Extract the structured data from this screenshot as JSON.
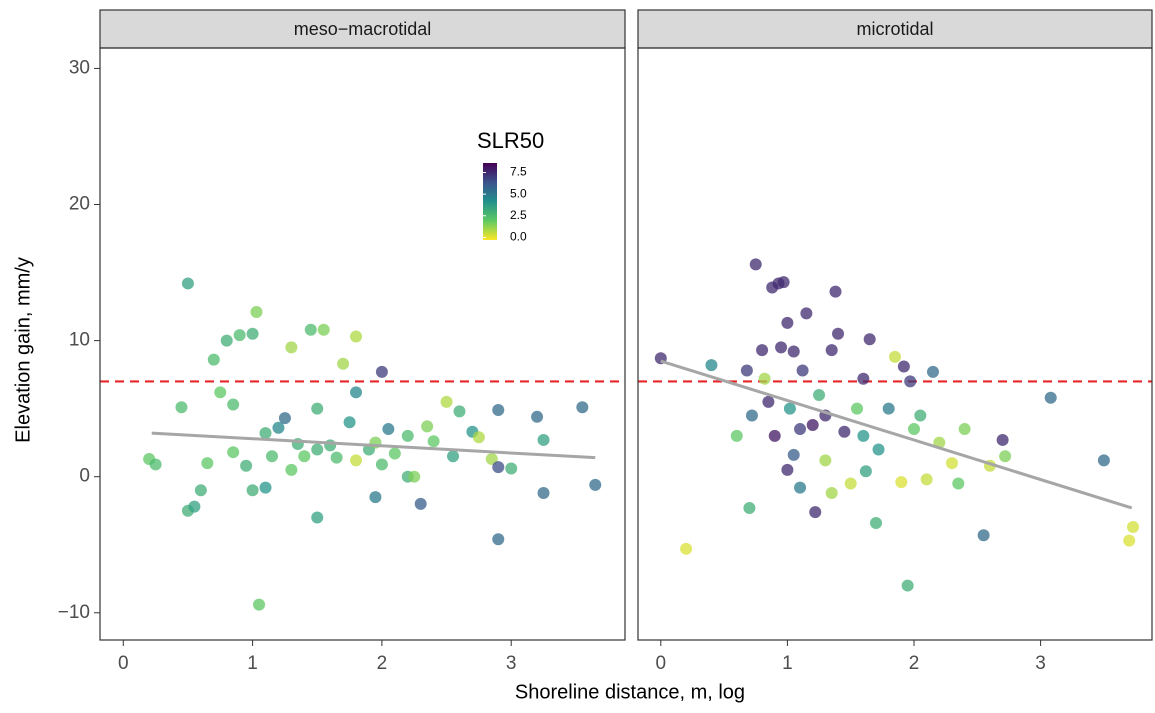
{
  "chart_data": {
    "type": "scatter",
    "x_label": "Shoreline distance, m, log",
    "y_label": "Elevation gain, mm/y",
    "xlim": [
      -0.18,
      3.88
    ],
    "xticks": [
      0,
      1,
      2,
      3
    ],
    "ylim": [
      -12,
      31.5
    ],
    "yticks": [
      {
        "value": -10,
        "label": "−10"
      },
      0,
      10,
      20,
      30
    ],
    "hline": 7,
    "hline_color": "#e8262a",
    "trend_color": "#a6a6a6",
    "legend": {
      "title": "SLR50",
      "position": "inside-top-right",
      "colorlim": [
        -0.3,
        8.6
      ],
      "ticks": [
        {
          "value": 0,
          "label": "0.0"
        },
        {
          "value": 2.5,
          "label": "2.5"
        },
        {
          "value": 5,
          "label": "5.0"
        },
        {
          "value": 7.5,
          "label": "7.5"
        }
      ],
      "colormap": [
        "#fde725",
        "#5ec962",
        "#21918c",
        "#3b528b",
        "#440154"
      ]
    },
    "panels": [
      {
        "title": "meso−macrotidal",
        "x": [
          0.2,
          0.25,
          0.45,
          0.5,
          0.5,
          0.55,
          0.6,
          0.65,
          0.7,
          0.75,
          0.8,
          0.85,
          0.9,
          0.95,
          1.0,
          1.0,
          1.03,
          1.05,
          1.1,
          1.1,
          1.15,
          1.2,
          1.25,
          1.3,
          1.35,
          1.4,
          1.45,
          1.5,
          1.5,
          1.55,
          1.6,
          1.65,
          1.7,
          1.75,
          1.8,
          1.8,
          1.9,
          1.95,
          2.0,
          2.0,
          2.05,
          2.1,
          2.2,
          2.25,
          2.3,
          2.35,
          2.4,
          2.5,
          2.55,
          2.6,
          2.7,
          2.75,
          2.85,
          2.9,
          2.9,
          2.9,
          3.0,
          3.2,
          3.25,
          3.25,
          3.55,
          3.65,
          1.3,
          1.5,
          2.2,
          1.8,
          0.85,
          1.95
        ],
        "y": [
          1.3,
          0.9,
          5.1,
          14.2,
          -2.5,
          -2.2,
          -1,
          1,
          8.6,
          6.2,
          10,
          5.3,
          10.4,
          0.8,
          -1,
          10.5,
          12.1,
          -9.4,
          3.2,
          -0.8,
          1.5,
          3.6,
          4.3,
          9.5,
          2.4,
          1.5,
          10.8,
          -3,
          5,
          10.8,
          2.3,
          1.4,
          8.3,
          4,
          10.3,
          6.2,
          2,
          -1.5,
          7.7,
          0.9,
          3.5,
          1.7,
          0,
          0,
          -2,
          3.7,
          2.6,
          5.5,
          1.5,
          4.8,
          3.3,
          2.9,
          1.3,
          0.7,
          4.9,
          -4.6,
          0.6,
          4.4,
          -1.2,
          2.7,
          5.1,
          -0.6,
          0.5,
          2,
          3,
          1.2,
          1.8,
          2.5
        ],
        "color_values": [
          2,
          2.5,
          2.5,
          3.5,
          3,
          3.5,
          3,
          2,
          2.5,
          2,
          3,
          2.5,
          2.5,
          3,
          3,
          3,
          1.5,
          2,
          3,
          4,
          2.5,
          4.5,
          5.5,
          1,
          3,
          2,
          2.5,
          3.5,
          3,
          1.5,
          3,
          2.5,
          1,
          4,
          0.8,
          4.5,
          3,
          5,
          7,
          2.5,
          5,
          2,
          3,
          1.5,
          6,
          1.5,
          2,
          0.8,
          3.5,
          3,
          4,
          0.8,
          1,
          6.5,
          5.5,
          5.5,
          3,
          5.5,
          5.5,
          3.5,
          5.5,
          5.5,
          2,
          3,
          2.5,
          0.5,
          2,
          1.5
        ],
        "trend": {
          "x": [
            0.22,
            3.65
          ],
          "y": [
            3.2,
            1.4
          ]
        }
      },
      {
        "title": "microtidal",
        "x": [
          0,
          0.2,
          0.4,
          0.6,
          0.68,
          0.7,
          0.72,
          0.75,
          0.8,
          0.82,
          0.85,
          0.88,
          0.9,
          0.93,
          0.97,
          1.0,
          1.0,
          1.02,
          1.05,
          1.05,
          1.1,
          1.12,
          1.15,
          1.2,
          1.22,
          1.25,
          1.3,
          1.35,
          1.38,
          1.4,
          1.45,
          1.5,
          1.55,
          1.6,
          1.62,
          1.65,
          1.7,
          1.72,
          1.8,
          1.85,
          1.9,
          1.92,
          1.95,
          1.97,
          2.0,
          2.05,
          2.1,
          2.15,
          2.2,
          2.3,
          2.35,
          2.4,
          2.55,
          2.6,
          2.7,
          2.72,
          3.08,
          3.5,
          3.73,
          3.7,
          1.3,
          1.1,
          0.95,
          1.6,
          1.35
        ],
        "y": [
          8.7,
          -5.3,
          8.2,
          3,
          7.8,
          -2.3,
          4.5,
          15.6,
          9.3,
          7.2,
          5.5,
          13.9,
          3,
          14.2,
          14.3,
          11.3,
          0.5,
          5,
          1.6,
          9.2,
          -0.8,
          7.8,
          12,
          3.8,
          -2.6,
          6,
          1.2,
          9.3,
          13.6,
          10.5,
          3.3,
          -0.5,
          5,
          7.2,
          0.4,
          10.1,
          -3.4,
          2,
          5,
          8.8,
          -0.4,
          8.1,
          -8,
          7,
          3.5,
          4.5,
          -0.2,
          7.7,
          2.5,
          1,
          -0.5,
          3.5,
          -4.3,
          0.8,
          2.7,
          1.5,
          5.8,
          1.2,
          -3.7,
          -4.7,
          4.5,
          3.5,
          9.5,
          3,
          -1.2
        ],
        "color_values": [
          7.5,
          0.2,
          4.5,
          2,
          7,
          3,
          5.5,
          7.5,
          7.5,
          1,
          7.5,
          7.5,
          8,
          7.5,
          7.5,
          7.5,
          7.5,
          4,
          6,
          7.5,
          5,
          7,
          7.5,
          8,
          7.5,
          3,
          1,
          7.5,
          7.5,
          7.5,
          7.5,
          0.5,
          2,
          7.5,
          3.5,
          7.5,
          3,
          4,
          5,
          0.5,
          0.2,
          7.5,
          3,
          7,
          2,
          3,
          0.5,
          5.5,
          1,
          0.3,
          2,
          1.5,
          5.5,
          0.5,
          7.5,
          1.5,
          5.5,
          5.5,
          0.3,
          0.2,
          7.5,
          7,
          7.5,
          4,
          1
        ],
        "trend": {
          "x": [
            0.0,
            3.72
          ],
          "y": [
            8.5,
            -2.3
          ]
        }
      }
    ]
  }
}
